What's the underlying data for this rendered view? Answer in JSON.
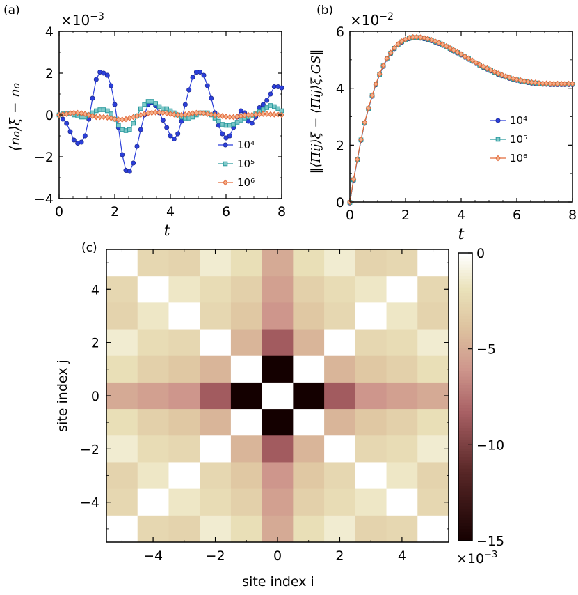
{
  "figure": {
    "panel_a_label": "(a)",
    "panel_b_label": "(b)",
    "panel_c_label": "(c)"
  },
  "chart_data": [
    {
      "id": "a",
      "type": "line",
      "multiplier_label": "×10",
      "multiplier_exp": "−3",
      "ylabel": "⟨n₀⟩ξ − n₀",
      "xlabel": "t",
      "xlim": [
        0,
        8
      ],
      "ylim": [
        -4,
        4
      ],
      "xticks": [
        0,
        2,
        4,
        6,
        8
      ],
      "yticks": [
        -4,
        -2,
        0,
        2,
        4
      ],
      "ytick_labels": [
        "−4",
        "−2",
        "0",
        "2",
        "4"
      ],
      "xtick_labels": [
        "0",
        "2",
        "4",
        "6",
        "8"
      ],
      "legend": [
        "10⁴",
        "10⁵",
        "10⁶"
      ],
      "series": [
        {
          "name": "10⁴",
          "color": "#2b3fd9",
          "marker": "circle",
          "x": [
            0,
            0.133,
            0.267,
            0.4,
            0.533,
            0.667,
            0.8,
            0.933,
            1.067,
            1.2,
            1.333,
            1.467,
            1.6,
            1.733,
            1.867,
            2.0,
            2.133,
            2.267,
            2.4,
            2.533,
            2.667,
            2.8,
            2.933,
            3.067,
            3.2,
            3.333,
            3.467,
            3.6,
            3.733,
            3.867,
            4.0,
            4.133,
            4.267,
            4.4,
            4.533,
            4.667,
            4.8,
            4.933,
            5.067,
            5.2,
            5.333,
            5.467,
            5.6,
            5.733,
            5.867,
            6.0,
            6.133,
            6.267,
            6.4,
            6.533,
            6.667,
            6.8,
            6.933,
            7.067,
            7.2,
            7.333,
            7.467,
            7.6,
            7.733,
            7.867,
            8.0
          ],
          "y": [
            0,
            -0.2,
            -0.4,
            -0.8,
            -1.2,
            -1.35,
            -1.3,
            -1.0,
            -0.2,
            0.8,
            1.7,
            2.05,
            2.0,
            1.9,
            1.4,
            0.5,
            -0.6,
            -1.9,
            -2.65,
            -2.7,
            -2.3,
            -1.5,
            -0.7,
            0.0,
            0.5,
            0.6,
            0.45,
            0.1,
            -0.25,
            -0.6,
            -1.0,
            -1.15,
            -0.9,
            -0.3,
            0.5,
            1.2,
            1.8,
            2.05,
            2.05,
            1.9,
            1.4,
            0.8,
            0.1,
            -0.5,
            -0.9,
            -1.1,
            -1.0,
            -0.6,
            -0.1,
            0.2,
            0.1,
            -0.3,
            -0.4,
            -0.1,
            0.35,
            0.5,
            0.7,
            1.0,
            1.35,
            1.35,
            1.3
          ]
        },
        {
          "name": "10⁵",
          "color": "#2a9a9e",
          "marker": "square",
          "x": [
            0,
            0.133,
            0.267,
            0.4,
            0.533,
            0.667,
            0.8,
            0.933,
            1.067,
            1.2,
            1.333,
            1.467,
            1.6,
            1.733,
            1.867,
            2.0,
            2.133,
            2.267,
            2.4,
            2.533,
            2.667,
            2.8,
            2.933,
            3.067,
            3.2,
            3.333,
            3.467,
            3.6,
            3.733,
            3.867,
            4.0,
            4.133,
            4.267,
            4.4,
            4.533,
            4.667,
            4.8,
            4.933,
            5.067,
            5.2,
            5.333,
            5.467,
            5.6,
            5.733,
            5.867,
            6.0,
            6.133,
            6.267,
            6.4,
            6.533,
            6.667,
            6.8,
            6.933,
            7.067,
            7.2,
            7.333,
            7.467,
            7.6,
            7.733,
            7.867,
            8.0
          ],
          "y": [
            0,
            0.05,
            0.05,
            0.05,
            0.0,
            -0.05,
            -0.1,
            -0.1,
            0.0,
            0.1,
            0.2,
            0.25,
            0.25,
            0.2,
            0.05,
            -0.2,
            -0.5,
            -0.7,
            -0.75,
            -0.7,
            -0.4,
            -0.05,
            0.3,
            0.5,
            0.65,
            0.65,
            0.55,
            0.4,
            0.3,
            0.3,
            0.2,
            0.1,
            0.0,
            -0.1,
            -0.15,
            -0.15,
            -0.1,
            0.0,
            0.1,
            0.1,
            0.1,
            0.0,
            -0.15,
            -0.3,
            -0.45,
            -0.5,
            -0.5,
            -0.45,
            -0.35,
            -0.25,
            -0.15,
            -0.1,
            -0.05,
            0.05,
            0.15,
            0.25,
            0.35,
            0.45,
            0.4,
            0.3,
            0.2
          ]
        },
        {
          "name": "10⁶",
          "color": "#e26a3b",
          "marker": "diamond",
          "x": [
            0,
            0.133,
            0.267,
            0.4,
            0.533,
            0.667,
            0.8,
            0.933,
            1.067,
            1.2,
            1.333,
            1.467,
            1.6,
            1.733,
            1.867,
            2.0,
            2.133,
            2.267,
            2.4,
            2.533,
            2.667,
            2.8,
            2.933,
            3.067,
            3.2,
            3.333,
            3.467,
            3.6,
            3.733,
            3.867,
            4.0,
            4.133,
            4.267,
            4.4,
            4.533,
            4.667,
            4.8,
            4.933,
            5.067,
            5.2,
            5.333,
            5.467,
            5.6,
            5.733,
            5.867,
            6.0,
            6.133,
            6.267,
            6.4,
            6.533,
            6.667,
            6.8,
            6.933,
            7.067,
            7.2,
            7.333,
            7.467,
            7.6,
            7.733,
            7.867,
            8.0
          ],
          "y": [
            0,
            0.03,
            0.05,
            0.08,
            0.1,
            0.1,
            0.08,
            0.05,
            0.0,
            -0.05,
            -0.1,
            -0.1,
            -0.1,
            -0.12,
            -0.15,
            -0.2,
            -0.22,
            -0.22,
            -0.2,
            -0.15,
            -0.1,
            -0.05,
            0.0,
            0.05,
            0.08,
            0.1,
            0.12,
            0.12,
            0.1,
            0.08,
            0.05,
            0.02,
            0.0,
            0.0,
            0.02,
            0.05,
            0.08,
            0.1,
            0.1,
            0.08,
            0.05,
            0.02,
            0.0,
            -0.02,
            -0.05,
            -0.08,
            -0.1,
            -0.1,
            -0.08,
            -0.05,
            -0.02,
            0.0,
            0.0,
            0.02,
            0.03,
            0.05,
            0.05,
            0.03,
            0.02,
            0.02,
            0.0
          ]
        }
      ]
    },
    {
      "id": "b",
      "type": "line",
      "multiplier_label": "×10",
      "multiplier_exp": "−2",
      "ylabel": "‖⟨Πij⟩ξ − ⟨Πij⟩ξ,GS‖",
      "xlabel": "t",
      "xlim": [
        0,
        8
      ],
      "ylim": [
        0,
        6
      ],
      "xticks": [
        0,
        2,
        4,
        6,
        8
      ],
      "yticks": [
        0,
        2,
        4,
        6
      ],
      "ytick_labels": [
        "0",
        "2",
        "4",
        "6"
      ],
      "xtick_labels": [
        "0",
        "2",
        "4",
        "6",
        "8"
      ],
      "legend": [
        "10⁴",
        "10⁵",
        "10⁶"
      ],
      "series": [
        {
          "name": "10⁴",
          "color": "#2b3fd9",
          "marker": "circle"
        },
        {
          "name": "10⁵",
          "color": "#2a9a9e",
          "marker": "square"
        },
        {
          "name": "10⁶",
          "color": "#e26a3b",
          "marker": "diamond",
          "x": [
            0,
            0.133,
            0.267,
            0.4,
            0.533,
            0.667,
            0.8,
            0.933,
            1.067,
            1.2,
            1.333,
            1.467,
            1.6,
            1.733,
            1.867,
            2.0,
            2.133,
            2.267,
            2.4,
            2.533,
            2.667,
            2.8,
            2.933,
            3.067,
            3.2,
            3.333,
            3.467,
            3.6,
            3.733,
            3.867,
            4.0,
            4.133,
            4.267,
            4.4,
            4.533,
            4.667,
            4.8,
            4.933,
            5.067,
            5.2,
            5.333,
            5.467,
            5.6,
            5.733,
            5.867,
            6.0,
            6.133,
            6.267,
            6.4,
            6.533,
            6.667,
            6.8,
            6.933,
            7.067,
            7.2,
            7.333,
            7.467,
            7.6,
            7.733,
            7.867,
            8.0
          ],
          "y": [
            0,
            0.8,
            1.5,
            2.2,
            2.8,
            3.3,
            3.75,
            4.15,
            4.5,
            4.8,
            5.05,
            5.25,
            5.42,
            5.55,
            5.65,
            5.72,
            5.77,
            5.8,
            5.8,
            5.79,
            5.77,
            5.74,
            5.7,
            5.65,
            5.6,
            5.54,
            5.48,
            5.41,
            5.34,
            5.27,
            5.2,
            5.12,
            5.05,
            4.98,
            4.9,
            4.83,
            4.76,
            4.7,
            4.64,
            4.58,
            4.52,
            4.47,
            4.42,
            4.38,
            4.34,
            4.31,
            4.28,
            4.25,
            4.23,
            4.21,
            4.2,
            4.18,
            4.17,
            4.17,
            4.16,
            4.16,
            4.16,
            4.16,
            4.16,
            4.16,
            4.16
          ]
        }
      ]
    },
    {
      "id": "c",
      "type": "heatmap",
      "xlabel": "site index i",
      "ylabel": "site index j",
      "x": [
        -5,
        -4,
        -3,
        -2,
        -1,
        0,
        1,
        2,
        3,
        4,
        5
      ],
      "y": [
        5,
        4,
        3,
        2,
        1,
        0,
        -1,
        -2,
        -3,
        -4,
        -5
      ],
      "xticks": [
        -4,
        -2,
        0,
        2,
        4
      ],
      "yticks": [
        -4,
        -2,
        0,
        2,
        4
      ],
      "xtick_labels": [
        "−4",
        "−2",
        "0",
        "2",
        "4"
      ],
      "ytick_labels": [
        "−4",
        "−2",
        "0",
        "2",
        "4"
      ],
      "vmin": -15,
      "vmax": 0,
      "colorbar_ticks": [
        0,
        -5,
        -10,
        -15
      ],
      "colorbar_tick_labels": [
        "0",
        "−5",
        "−10",
        "−15"
      ],
      "colorbar_multiplier": "×10",
      "colorbar_exp": "−3",
      "values": [
        [
          0,
          -2.5,
          -2.8,
          -1.2,
          -2.0,
          -5.0,
          -2.0,
          -1.2,
          -2.8,
          -2.5,
          0
        ],
        [
          -2.5,
          0,
          -1.5,
          -2.2,
          -3.0,
          -5.5,
          -3.0,
          -2.2,
          -1.5,
          0,
          -2.5
        ],
        [
          -2.8,
          -1.5,
          0,
          -2.5,
          -3.5,
          -6.0,
          -3.5,
          -2.5,
          0,
          -1.5,
          -2.8
        ],
        [
          -1.2,
          -2.2,
          -2.5,
          0,
          -4.5,
          -8.5,
          -4.5,
          0,
          -2.5,
          -2.2,
          -1.2
        ],
        [
          -2.0,
          -3.0,
          -3.5,
          -4.5,
          0,
          -15.0,
          0,
          -4.5,
          -3.5,
          -3.0,
          -2.0
        ],
        [
          -5.0,
          -5.5,
          -6.0,
          -8.5,
          -15.0,
          0,
          -15.0,
          -8.5,
          -6.0,
          -5.5,
          -5.0
        ],
        [
          -2.0,
          -3.0,
          -3.5,
          -4.5,
          0,
          -15.0,
          0,
          -4.5,
          -3.5,
          -3.0,
          -2.0
        ],
        [
          -1.2,
          -2.2,
          -2.5,
          0,
          -4.5,
          -8.5,
          -4.5,
          0,
          -2.5,
          -2.2,
          -1.2
        ],
        [
          -2.8,
          -1.5,
          0,
          -2.5,
          -3.5,
          -6.0,
          -3.5,
          -2.5,
          0,
          -1.5,
          -2.8
        ],
        [
          -2.5,
          0,
          -1.5,
          -2.2,
          -3.0,
          -5.5,
          -3.0,
          -2.2,
          -1.5,
          0,
          -2.5
        ],
        [
          0,
          -2.5,
          -2.8,
          -1.2,
          -2.0,
          -5.0,
          -2.0,
          -1.2,
          -2.8,
          -2.5,
          0
        ]
      ]
    }
  ]
}
